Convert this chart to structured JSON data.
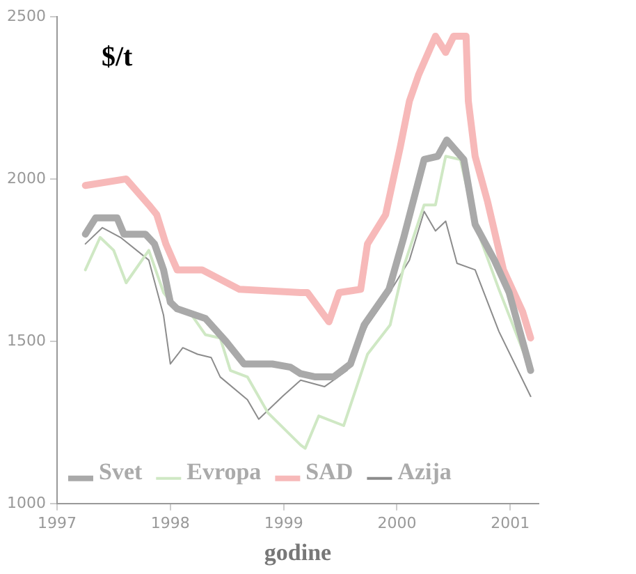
{
  "chart_data": {
    "type": "line",
    "ylabel": "$/t",
    "xlabel": "godine",
    "xlim": [
      1997,
      2001.25
    ],
    "xticks": [
      1997,
      1998,
      1999,
      2000,
      2001
    ],
    "ylim": [
      1000,
      2500
    ],
    "yticks": [
      1000,
      1500,
      2000,
      2500
    ],
    "grid": false,
    "legend": "bottom",
    "marker": "none",
    "line_style": "solid",
    "series": [
      {
        "name": "Svet",
        "color": "#a9a9a9",
        "x": [
          1997.25,
          1997.34,
          1997.53,
          1997.59,
          1997.78,
          1997.86,
          1997.94,
          1998.0,
          1998.06,
          1998.31,
          1998.49,
          1998.65,
          1998.9,
          1999.06,
          1999.15,
          1999.28,
          1999.44,
          1999.59,
          1999.71,
          1999.93,
          2000.06,
          2000.24,
          2000.36,
          2000.44,
          2000.59,
          2000.69,
          2000.86,
          2000.99,
          2001.18
        ],
        "values": [
          1830,
          1880,
          1880,
          1830,
          1830,
          1800,
          1720,
          1620,
          1600,
          1570,
          1500,
          1430,
          1430,
          1420,
          1400,
          1390,
          1390,
          1430,
          1550,
          1660,
          1820,
          2060,
          2070,
          2120,
          2060,
          1860,
          1750,
          1650,
          1410
        ]
      },
      {
        "name": "Evropa",
        "color": "#cfe8c4",
        "x": [
          1997.25,
          1997.38,
          1997.5,
          1997.61,
          1997.81,
          1997.94,
          1998.05,
          1998.19,
          1998.31,
          1998.44,
          1998.53,
          1998.68,
          1998.86,
          1999.15,
          1999.19,
          1999.31,
          1999.53,
          1999.74,
          1999.94,
          2000.06,
          2000.24,
          2000.34,
          2000.43,
          2000.56,
          2000.69,
          2000.9,
          2001.18
        ],
        "values": [
          1720,
          1820,
          1780,
          1680,
          1780,
          1650,
          1600,
          1580,
          1520,
          1510,
          1410,
          1390,
          1280,
          1180,
          1170,
          1270,
          1240,
          1460,
          1550,
          1730,
          1920,
          1920,
          2070,
          2060,
          1860,
          1660,
          1410
        ]
      },
      {
        "name": "SAD",
        "color": "#f7b9b9",
        "x": [
          1997.25,
          1997.61,
          1997.81,
          1997.88,
          1997.96,
          1998.06,
          1998.28,
          1998.61,
          1999.15,
          1999.21,
          1999.4,
          1999.49,
          1999.68,
          1999.74,
          1999.9,
          2000.03,
          2000.11,
          2000.19,
          2000.34,
          2000.43,
          2000.5,
          2000.61,
          2000.63,
          2000.69,
          2000.8,
          2000.94,
          2001.11,
          2001.18
        ],
        "values": [
          1980,
          2000,
          1920,
          1890,
          1800,
          1720,
          1720,
          1660,
          1650,
          1650,
          1560,
          1650,
          1660,
          1800,
          1890,
          2100,
          2240,
          2320,
          2440,
          2390,
          2440,
          2440,
          2240,
          2070,
          1930,
          1720,
          1590,
          1510
        ]
      },
      {
        "name": "Azija",
        "color": "#8c8c8c",
        "x": [
          1997.25,
          1997.4,
          1997.56,
          1997.81,
          1997.94,
          1998.0,
          1998.11,
          1998.24,
          1998.36,
          1998.44,
          1998.68,
          1998.78,
          1998.99,
          1999.15,
          1999.36,
          1999.56,
          1999.74,
          1999.9,
          2000.11,
          2000.24,
          2000.34,
          2000.43,
          2000.53,
          2000.69,
          2000.9,
          2001.18
        ],
        "values": [
          1800,
          1850,
          1820,
          1750,
          1580,
          1430,
          1480,
          1460,
          1450,
          1390,
          1320,
          1260,
          1330,
          1380,
          1360,
          1410,
          1550,
          1630,
          1750,
          1900,
          1840,
          1870,
          1740,
          1720,
          1530,
          1330
        ]
      }
    ]
  }
}
